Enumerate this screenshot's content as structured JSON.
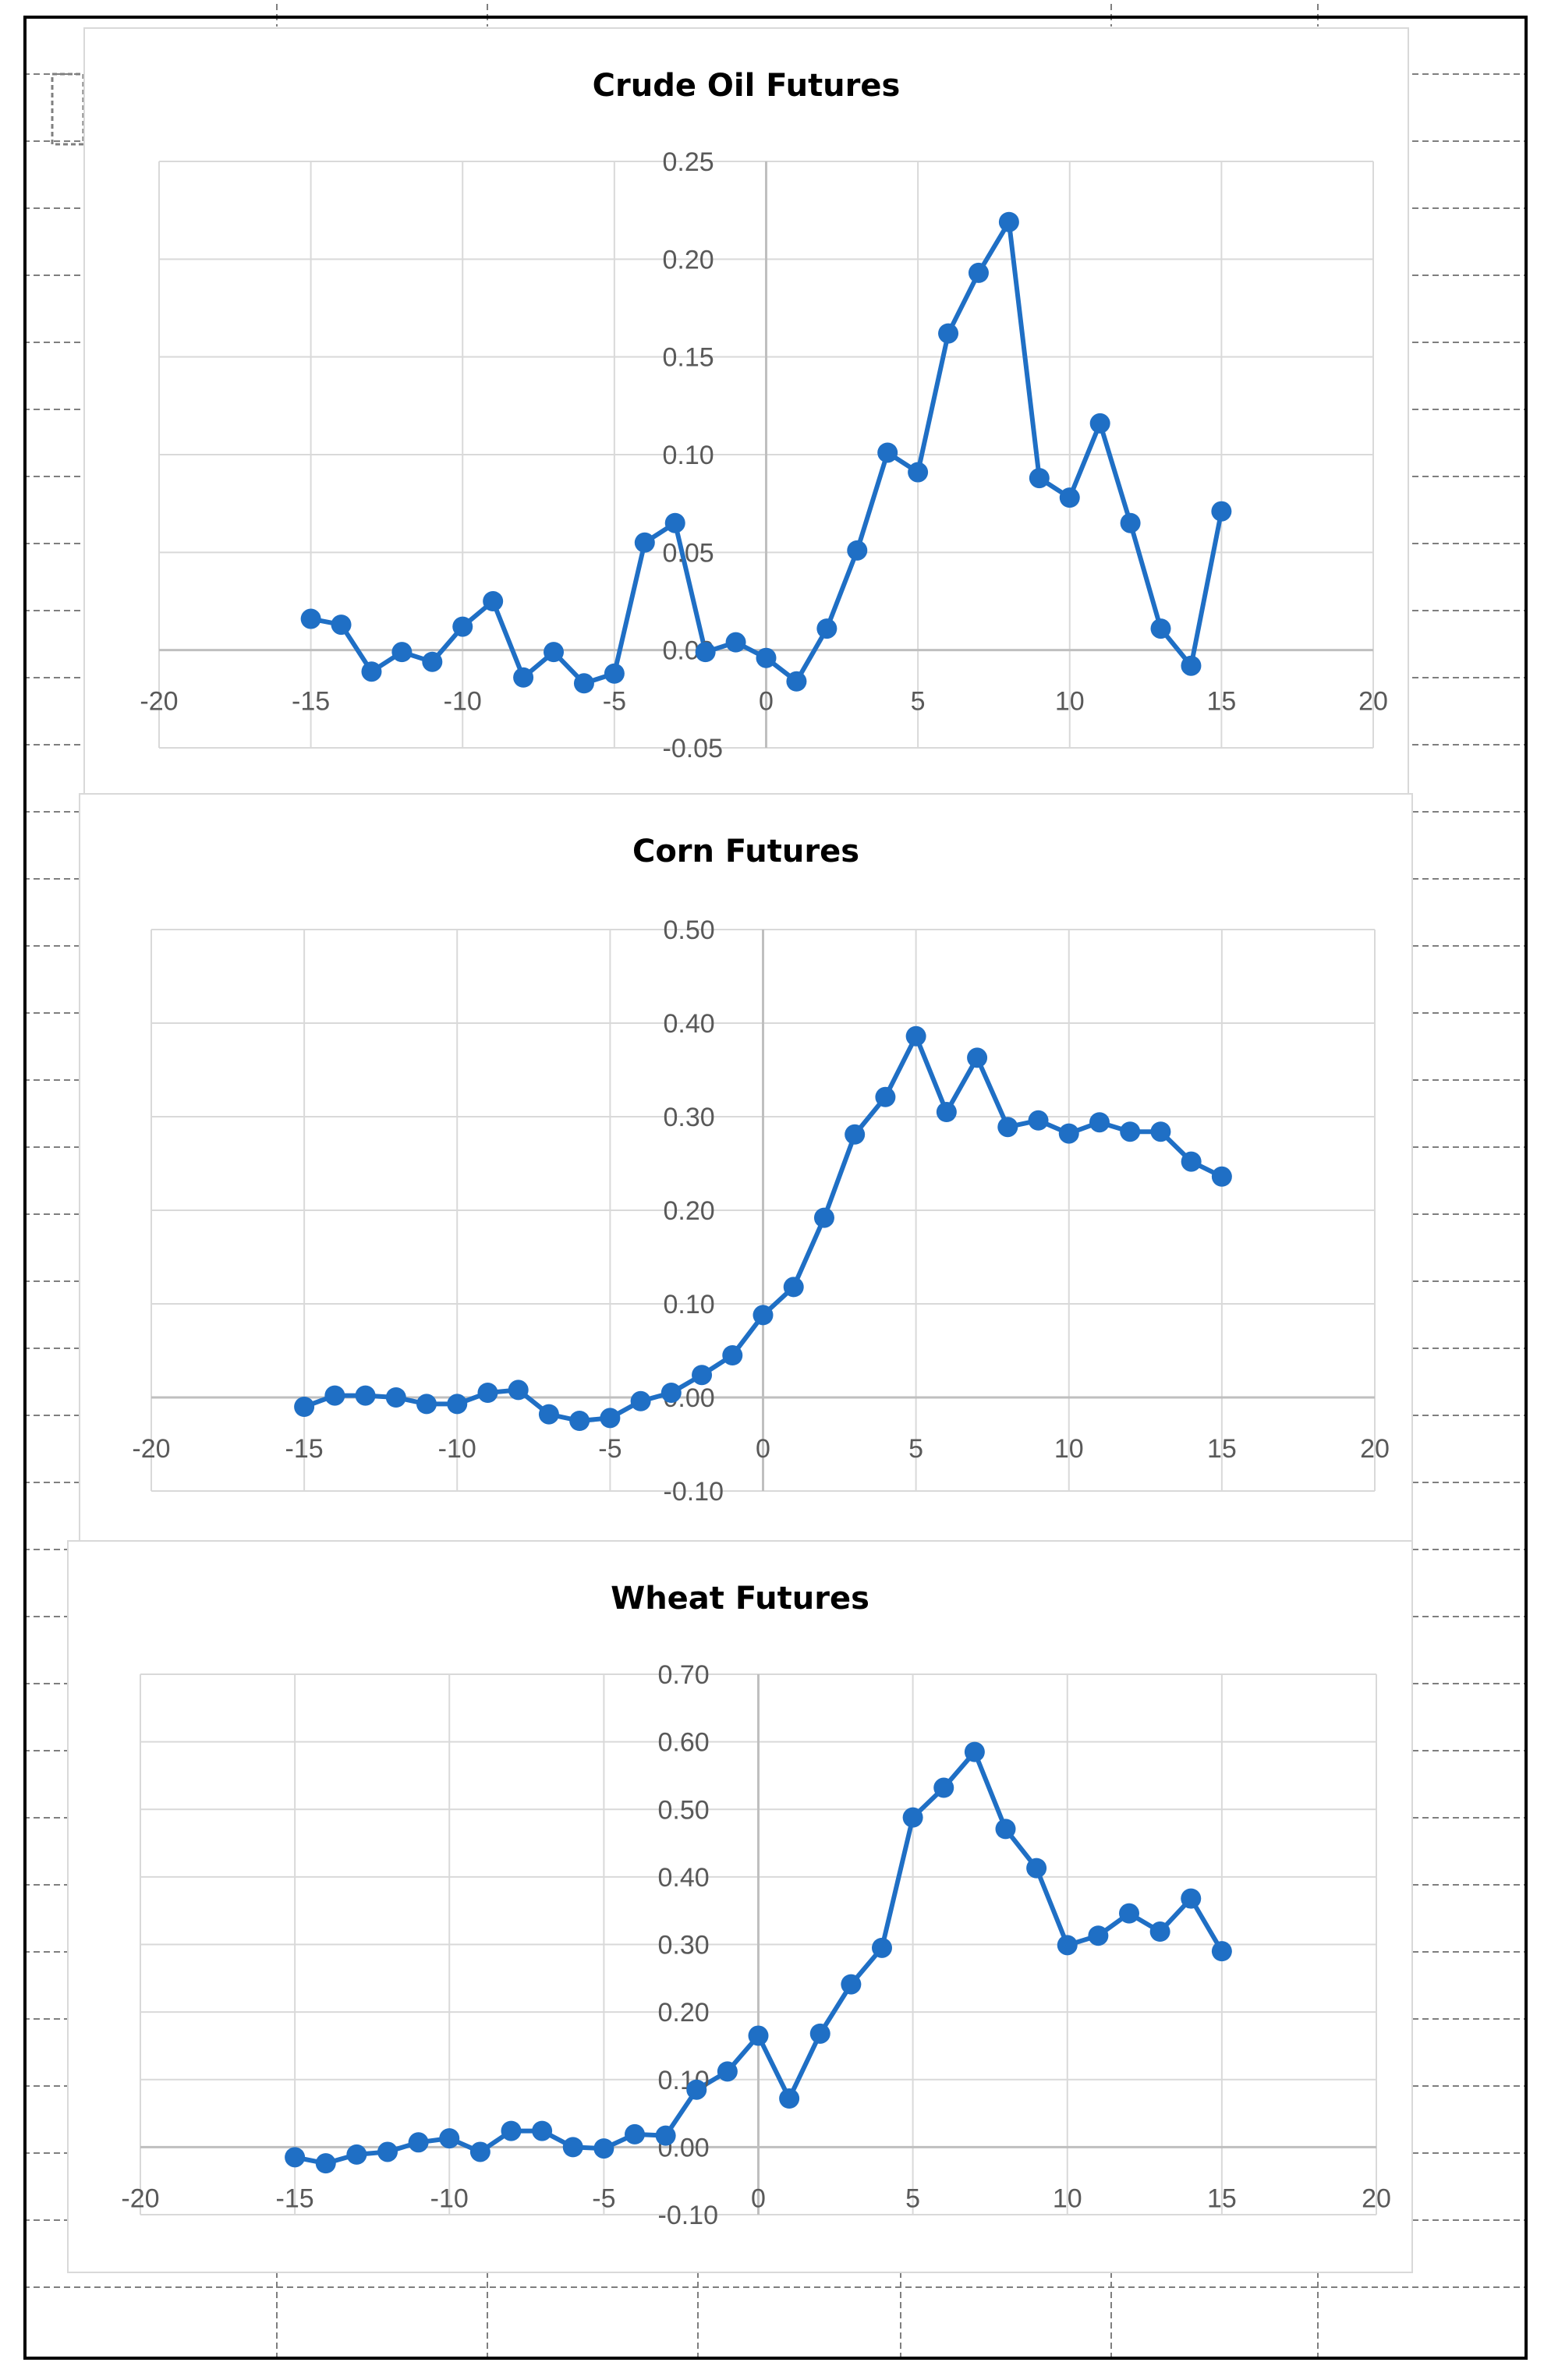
{
  "page": {
    "frame_color": "#000000",
    "cell_border_color": "#7f7f7f"
  },
  "chart_data": [
    {
      "type": "scatter",
      "title": "Crude Oil Futures",
      "xlabel": "",
      "ylabel": "",
      "xlim": [
        -20,
        20
      ],
      "ylim": [
        -0.05,
        0.25
      ],
      "x_ticks": [
        "-20",
        "-15",
        "-10",
        "-5",
        "0",
        "5",
        "10",
        "15",
        "20"
      ],
      "y_ticks": [
        "-0.05",
        "0.00",
        "0.05",
        "0.10",
        "0.15",
        "0.20",
        "0.25"
      ],
      "grid": true,
      "legend": "none",
      "series_color": "#1f6fc5",
      "series": [
        {
          "x": [
            -15,
            -14,
            -13,
            -12,
            -11,
            -10,
            -9,
            -8,
            -7,
            -6,
            -5,
            -4,
            -3,
            -2,
            -1,
            0,
            1,
            2,
            3,
            4,
            5,
            6,
            7,
            8,
            9,
            10,
            11,
            12,
            13,
            14,
            15
          ],
          "y": [
            0.016,
            0.013,
            -0.011,
            -0.001,
            -0.006,
            0.012,
            0.025,
            -0.014,
            -0.001,
            -0.017,
            -0.012,
            0.055,
            0.065,
            -0.001,
            0.004,
            -0.004,
            -0.016,
            0.011,
            0.051,
            0.101,
            0.091,
            0.162,
            0.193,
            0.219,
            0.088,
            0.078,
            0.116,
            0.065,
            0.011,
            -0.008,
            0.071
          ]
        }
      ]
    },
    {
      "type": "scatter",
      "title": "Corn Futures",
      "xlabel": "",
      "ylabel": "",
      "xlim": [
        -20,
        20
      ],
      "ylim": [
        -0.1,
        0.5
      ],
      "x_ticks": [
        "-20",
        "-15",
        "-10",
        "-5",
        "0",
        "5",
        "10",
        "15",
        "20"
      ],
      "y_ticks": [
        "-0.10",
        "0.00",
        "0.10",
        "0.20",
        "0.30",
        "0.40",
        "0.50"
      ],
      "grid": true,
      "legend": "none",
      "series_color": "#1f6fc5",
      "series": [
        {
          "x": [
            -15,
            -14,
            -13,
            -12,
            -11,
            -10,
            -9,
            -8,
            -7,
            -6,
            -5,
            -4,
            -3,
            -2,
            -1,
            0,
            1,
            2,
            3,
            4,
            5,
            6,
            7,
            8,
            9,
            10,
            11,
            12,
            13,
            14,
            15
          ],
          "y": [
            -0.01,
            0.002,
            0.002,
            0.0,
            -0.007,
            -0.007,
            0.005,
            0.008,
            -0.018,
            -0.025,
            -0.022,
            -0.004,
            0.005,
            0.024,
            0.045,
            0.088,
            0.118,
            0.192,
            0.281,
            0.321,
            0.386,
            0.305,
            0.363,
            0.289,
            0.296,
            0.282,
            0.294,
            0.284,
            0.284,
            0.252,
            0.236
          ]
        }
      ]
    },
    {
      "type": "scatter",
      "title": "Wheat Futures",
      "xlabel": "",
      "ylabel": "",
      "xlim": [
        -20,
        20
      ],
      "ylim": [
        -0.1,
        0.7
      ],
      "x_ticks": [
        "-20",
        "-15",
        "-10",
        "-5",
        "0",
        "5",
        "10",
        "15",
        "20"
      ],
      "y_ticks": [
        "-0.10",
        "0.00",
        "0.10",
        "0.20",
        "0.30",
        "0.40",
        "0.50",
        "0.60",
        "0.70"
      ],
      "grid": true,
      "legend": "none",
      "series_color": "#1f6fc5",
      "series": [
        {
          "x": [
            -15,
            -14,
            -13,
            -12,
            -11,
            -10,
            -9,
            -8,
            -7,
            -6,
            -5,
            -4,
            -3,
            -2,
            -1,
            0,
            1,
            2,
            3,
            4,
            5,
            6,
            7,
            8,
            9,
            10,
            11,
            12,
            13,
            14,
            15
          ],
          "y": [
            -0.015,
            -0.024,
            -0.011,
            -0.007,
            0.007,
            0.013,
            -0.007,
            0.024,
            0.024,
            0.0,
            -0.002,
            0.019,
            0.017,
            0.085,
            0.112,
            0.165,
            0.072,
            0.168,
            0.241,
            0.295,
            0.488,
            0.532,
            0.585,
            0.471,
            0.413,
            0.299,
            0.313,
            0.346,
            0.319,
            0.368,
            0.29
          ]
        }
      ]
    }
  ]
}
